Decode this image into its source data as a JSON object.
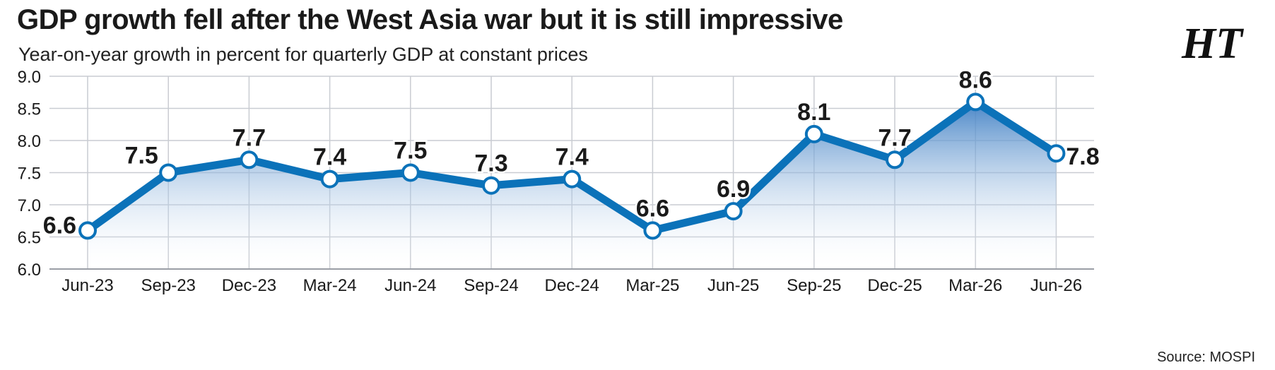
{
  "chart_data": {
    "type": "line",
    "title": "GDP growth fell after the West Asia war but it is still impressive",
    "subtitle": "Year-on-year growth in percent for quarterly GDP at constant prices",
    "categories": [
      "Jun-23",
      "Sep-23",
      "Dec-23",
      "Mar-24",
      "Jun-24",
      "Sep-24",
      "Dec-24",
      "Mar-25",
      "Jun-25",
      "Sep-25",
      "Dec-25",
      "Mar-26",
      "Jun-26"
    ],
    "series": [
      {
        "values": [
          6.6,
          7.5,
          7.7,
          7.4,
          7.5,
          7.3,
          7.4,
          6.6,
          6.9,
          8.1,
          7.7,
          8.6,
          7.8
        ]
      }
    ],
    "data_labels": [
      "6.6",
      "7.5",
      "7.7",
      "7.4",
      "7.5",
      "7.3",
      "7.4",
      "6.6",
      "6.9",
      "8.1",
      "7.7",
      "8.6",
      "7.8"
    ],
    "ylim": [
      6.0,
      9.0
    ],
    "yticks": [
      "6.0",
      "6.5",
      "7.0",
      "7.5",
      "8.0",
      "8.5",
      "9.0"
    ],
    "xlabel": "",
    "ylabel": "",
    "grid": true,
    "area_fill": true,
    "source": "Source: MOSPI"
  },
  "logo": {
    "text": "HT"
  },
  "colors": {
    "line": "#0b72b9",
    "area_top": "#3f7fc4",
    "grid": "#c9ccd2",
    "marker_fill": "#ffffff",
    "text": "#1a1a1a"
  }
}
